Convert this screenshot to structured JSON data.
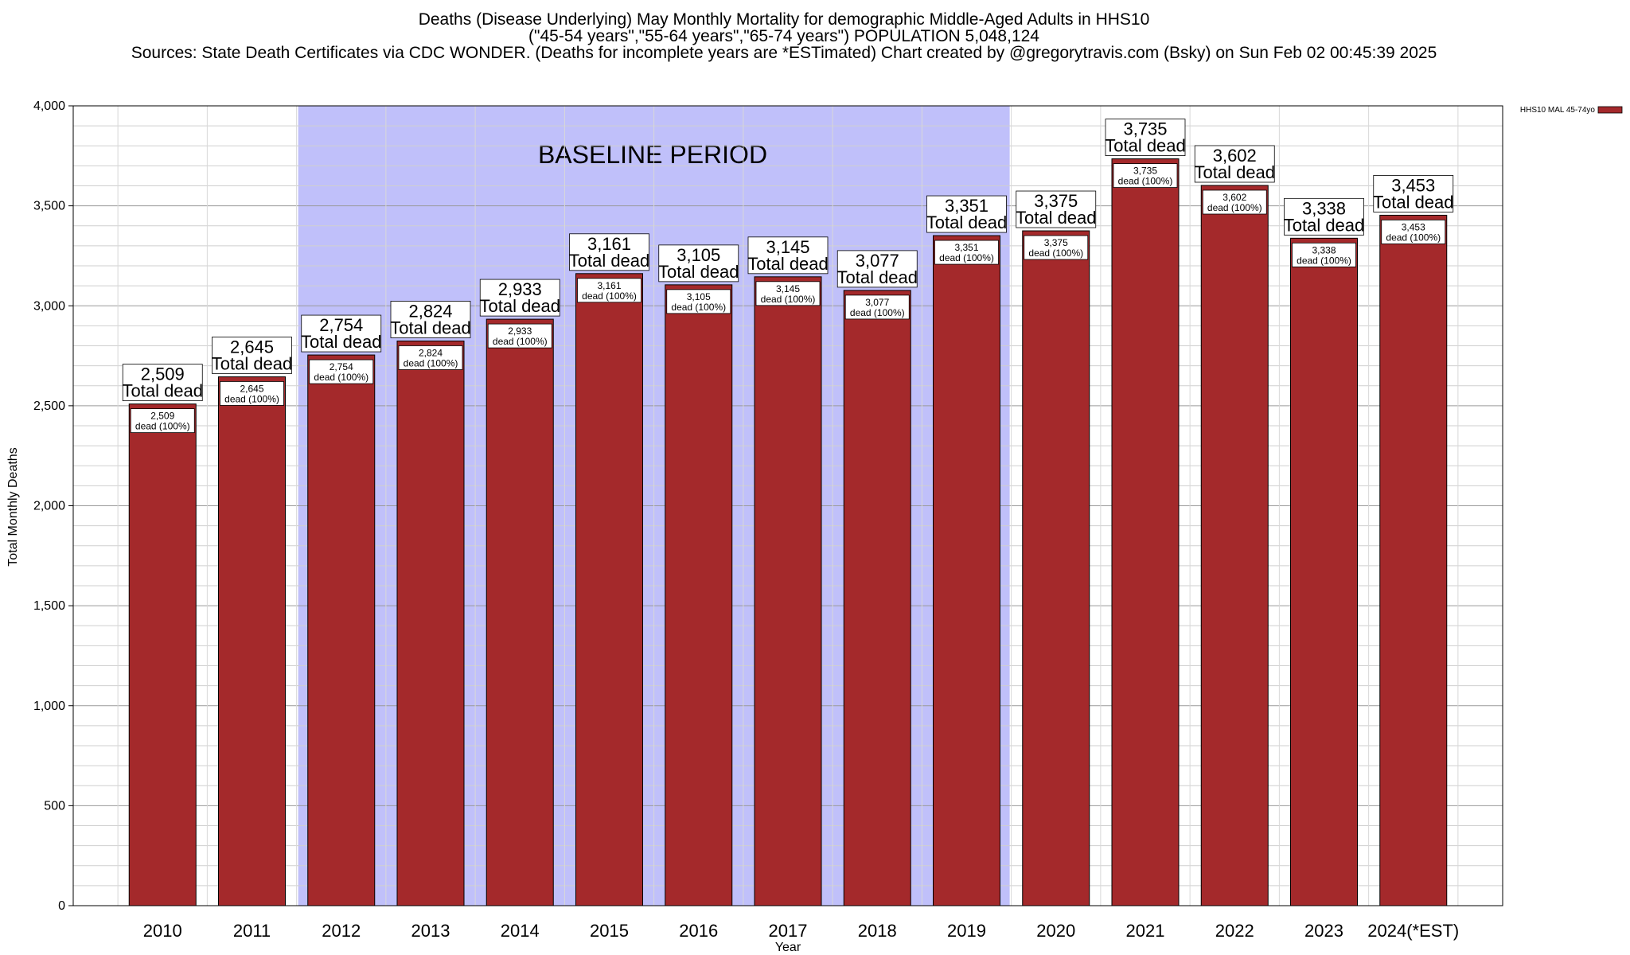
{
  "chart_data": {
    "type": "bar",
    "title_lines": [
      "Deaths (Disease Underlying) May Monthly Mortality for demographic Middle-Aged Adults in HHS10",
      "(\"45-54 years\",\"55-64 years\",\"65-74 years\") POPULATION 5,048,124",
      "Sources: State Death Certificates via CDC WONDER. (Deaths for incomplete years are *ESTimated)                Chart created by @gregorytravis.com (Bsky) on Sun Feb 02 00:45:39 2025"
    ],
    "xlabel": "Year",
    "ylabel": "Total Monthly Deaths",
    "categories": [
      "2010",
      "2011",
      "2012",
      "2013",
      "2014",
      "2015",
      "2016",
      "2017",
      "2018",
      "2019",
      "2020",
      "2021",
      "2022",
      "2023",
      "2024(*EST)"
    ],
    "series": [
      {
        "name": "HHS10 MAL 45-74yo",
        "color": "#a4292b",
        "values": [
          2509,
          2645,
          2754,
          2824,
          2933,
          3161,
          3105,
          3145,
          3077,
          3351,
          3375,
          3735,
          3602,
          3338,
          3453
        ]
      }
    ],
    "value_labels": [
      "2,509",
      "2,645",
      "2,754",
      "2,824",
      "2,933",
      "3,161",
      "3,105",
      "3,145",
      "3,077",
      "3,351",
      "3,375",
      "3,735",
      "3,602",
      "3,338",
      "3,453"
    ],
    "label_caption": "Total dead",
    "inner_caption": "dead (100%)",
    "ylim": [
      0,
      4000
    ],
    "yticks": [
      0,
      500,
      1000,
      1500,
      2000,
      2500,
      3000,
      3500,
      4000
    ],
    "ytick_labels": [
      "0",
      "500",
      "1,000",
      "1,500",
      "2,000",
      "2,500",
      "3,000",
      "3,500",
      "4,000"
    ],
    "minor_grid_step": 100,
    "grid": true,
    "baseline_period": {
      "label": "BASELINE PERIOD",
      "start": "2012",
      "end": "2019",
      "color": "#c0c0fa"
    },
    "legend_position": "top-right"
  }
}
